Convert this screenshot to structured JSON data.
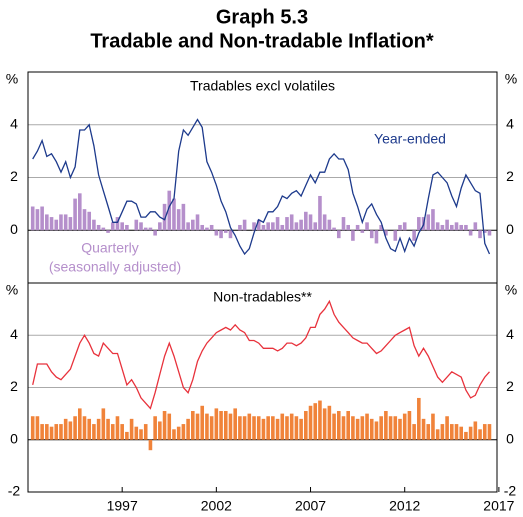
{
  "title": "Graph 5.3",
  "subtitle": "Tradable and Non-tradable Inflation*",
  "chart_data": [
    {
      "type": "bar-line",
      "title": "Tradables excl volatiles",
      "ylabel": "%",
      "ylim": [
        -2,
        6
      ],
      "yticks": [
        0,
        2,
        4
      ],
      "xlim": [
        1992,
        2016.9
      ],
      "grid": true,
      "x": [
        1992.25,
        1992.5,
        1992.75,
        1993,
        1993.25,
        1993.5,
        1993.75,
        1994,
        1994.25,
        1994.5,
        1994.75,
        1995,
        1995.25,
        1995.5,
        1995.75,
        1996,
        1996.25,
        1996.5,
        1996.75,
        1997,
        1997.25,
        1997.5,
        1997.75,
        1998,
        1998.25,
        1998.5,
        1998.75,
        1999,
        1999.25,
        1999.5,
        1999.75,
        2000,
        2000.25,
        2000.5,
        2000.75,
        2001,
        2001.25,
        2001.5,
        2001.75,
        2002,
        2002.25,
        2002.5,
        2002.75,
        2003,
        2003.25,
        2003.5,
        2003.75,
        2004,
        2004.25,
        2004.5,
        2004.75,
        2005,
        2005.25,
        2005.5,
        2005.75,
        2006,
        2006.25,
        2006.5,
        2006.75,
        2007,
        2007.25,
        2007.5,
        2007.75,
        2008,
        2008.25,
        2008.5,
        2008.75,
        2009,
        2009.25,
        2009.5,
        2009.75,
        2010,
        2010.25,
        2010.5,
        2010.75,
        2011,
        2011.25,
        2011.5,
        2011.75,
        2012,
        2012.25,
        2012.5,
        2012.75,
        2013,
        2013.25,
        2013.5,
        2013.75,
        2014,
        2014.25,
        2014.5,
        2014.75,
        2015,
        2015.25,
        2015.5,
        2015.75,
        2016,
        2016.25,
        2016.5
      ],
      "series": [
        {
          "name": "Quarterly",
          "kind": "bar",
          "color": "#b58fcb",
          "note": "(seasonally adjusted)",
          "values": [
            0.9,
            0.8,
            0.9,
            0.6,
            0.5,
            0.4,
            0.6,
            0.6,
            0.5,
            1.2,
            1.4,
            0.8,
            0.7,
            0.4,
            0.2,
            0.1,
            -0.1,
            0.3,
            0.5,
            0.3,
            0.2,
            0.0,
            0.4,
            0.3,
            0.1,
            0.1,
            -0.2,
            0.3,
            1.0,
            1.5,
            1.2,
            0.8,
            1.0,
            0.3,
            0.4,
            0.6,
            0.2,
            0.1,
            0.2,
            -0.2,
            -0.3,
            -0.1,
            -0.3,
            0.0,
            0.2,
            0.4,
            0.0,
            0.3,
            0.4,
            0.2,
            0.3,
            0.3,
            0.5,
            0.2,
            0.5,
            0.6,
            0.3,
            0.4,
            0.7,
            0.6,
            0.3,
            1.3,
            0.6,
            0.4,
            0.1,
            -0.3,
            0.5,
            0.2,
            -0.4,
            0.2,
            -0.1,
            0.3,
            -0.3,
            -0.5,
            0.2,
            -0.2,
            0.0,
            -0.4,
            0.2,
            0.3,
            0.0,
            -0.4,
            0.5,
            0.5,
            0.6,
            0.8,
            0.3,
            0.2,
            0.4,
            0.2,
            0.3,
            0.2,
            0.2,
            -0.2,
            0.3,
            -0.3,
            -0.1,
            -0.2
          ]
        },
        {
          "name": "Year-ended",
          "kind": "line",
          "color": "#1d3a8c",
          "values": [
            2.7,
            3.0,
            3.4,
            2.8,
            2.9,
            2.6,
            2.2,
            2.6,
            2.0,
            2.4,
            3.8,
            3.8,
            4.0,
            3.2,
            2.1,
            1.5,
            0.9,
            0.3,
            0.3,
            0.7,
            1.1,
            1.1,
            1.0,
            0.5,
            0.5,
            0.7,
            0.7,
            0.5,
            0.4,
            0.9,
            1.2,
            3.0,
            3.8,
            3.6,
            3.9,
            4.2,
            3.9,
            2.6,
            2.2,
            1.7,
            1.1,
            0.7,
            0.1,
            -0.2,
            -0.6,
            -0.9,
            -0.7,
            -0.1,
            0.4,
            0.3,
            0.7,
            0.7,
            0.9,
            1.3,
            1.2,
            1.4,
            1.5,
            1.3,
            1.7,
            2.1,
            1.8,
            2.2,
            2.2,
            2.7,
            2.9,
            2.7,
            2.7,
            2.3,
            1.4,
            0.9,
            0.3,
            0.8,
            1.0,
            0.6,
            0.3,
            -0.3,
            -0.7,
            -0.8,
            -0.3,
            -0.8,
            -0.3,
            -0.6,
            -0.1,
            0.2,
            1.2,
            2.1,
            2.2,
            2.0,
            1.8,
            1.3,
            0.9,
            1.6,
            2.1,
            1.8,
            1.5,
            1.4,
            -0.5,
            -0.9
          ]
        }
      ]
    },
    {
      "type": "bar-line",
      "title": "Non-tradables**",
      "ylabel": "%",
      "ylim": [
        -2,
        6
      ],
      "yticks": [
        -2,
        0,
        2,
        4
      ],
      "xlim": [
        1992,
        2016.9
      ],
      "grid": true,
      "xticks": [
        1997,
        2002,
        2007,
        2012,
        2017
      ],
      "x": [
        1992.25,
        1992.5,
        1992.75,
        1993,
        1993.25,
        1993.5,
        1993.75,
        1994,
        1994.25,
        1994.5,
        1994.75,
        1995,
        1995.25,
        1995.5,
        1995.75,
        1996,
        1996.25,
        1996.5,
        1996.75,
        1997,
        1997.25,
        1997.5,
        1997.75,
        1998,
        1998.25,
        1998.5,
        1998.75,
        1999,
        1999.25,
        1999.5,
        1999.75,
        2000,
        2000.25,
        2000.5,
        2000.75,
        2001,
        2001.25,
        2001.5,
        2001.75,
        2002,
        2002.25,
        2002.5,
        2002.75,
        2003,
        2003.25,
        2003.5,
        2003.75,
        2004,
        2004.25,
        2004.5,
        2004.75,
        2005,
        2005.25,
        2005.5,
        2005.75,
        2006,
        2006.25,
        2006.5,
        2006.75,
        2007,
        2007.25,
        2007.5,
        2007.75,
        2008,
        2008.25,
        2008.5,
        2008.75,
        2009,
        2009.25,
        2009.5,
        2009.75,
        2010,
        2010.25,
        2010.5,
        2010.75,
        2011,
        2011.25,
        2011.5,
        2011.75,
        2012,
        2012.25,
        2012.5,
        2012.75,
        2013,
        2013.25,
        2013.5,
        2013.75,
        2014,
        2014.25,
        2014.5,
        2014.75,
        2015,
        2015.25,
        2015.5,
        2015.75,
        2016,
        2016.25,
        2016.5
      ],
      "series": [
        {
          "kind": "bar",
          "color": "#f0833a",
          "values": [
            0.9,
            0.9,
            0.6,
            0.6,
            0.5,
            0.6,
            0.6,
            0.8,
            0.7,
            0.9,
            1.2,
            0.9,
            0.8,
            0.6,
            0.8,
            1.2,
            0.8,
            0.6,
            0.9,
            0.6,
            0.3,
            0.8,
            0.5,
            0.4,
            0.6,
            -0.4,
            0.9,
            0.7,
            1.1,
            1.0,
            0.4,
            0.5,
            0.6,
            0.8,
            1.1,
            1.0,
            1.3,
            1.0,
            0.9,
            1.2,
            1.1,
            1.1,
            1.0,
            1.2,
            0.9,
            0.9,
            1.0,
            0.9,
            0.9,
            0.8,
            0.9,
            0.9,
            0.8,
            1.0,
            0.9,
            1.0,
            0.9,
            0.8,
            1.1,
            1.3,
            1.4,
            1.5,
            1.2,
            1.3,
            1.0,
            1.1,
            0.9,
            1.1,
            0.9,
            0.8,
            0.9,
            1.0,
            0.8,
            0.7,
            0.9,
            1.1,
            0.9,
            0.9,
            0.8,
            1.0,
            1.1,
            0.6,
            1.6,
            0.8,
            0.6,
            1.0,
            0.4,
            0.6,
            0.9,
            0.6,
            0.6,
            0.5,
            0.3,
            0.5,
            0.7,
            0.4,
            0.6,
            0.6
          ]
        },
        {
          "kind": "line",
          "color": "#e8323c",
          "values": [
            2.1,
            2.9,
            2.9,
            2.9,
            2.6,
            2.4,
            2.3,
            2.5,
            2.7,
            3.2,
            3.7,
            4.0,
            3.7,
            3.3,
            3.2,
            3.7,
            3.5,
            3.3,
            3.3,
            2.7,
            2.1,
            2.3,
            2.0,
            1.6,
            1.4,
            1.2,
            1.8,
            2.5,
            3.2,
            3.7,
            3.2,
            2.6,
            2.0,
            1.8,
            2.3,
            3.0,
            3.4,
            3.7,
            3.9,
            4.1,
            4.2,
            4.3,
            4.2,
            4.4,
            4.2,
            4.1,
            3.8,
            3.8,
            3.7,
            3.5,
            3.5,
            3.5,
            3.4,
            3.5,
            3.7,
            3.7,
            3.6,
            3.7,
            3.9,
            4.3,
            4.3,
            4.8,
            5.0,
            5.3,
            4.8,
            4.5,
            4.3,
            4.1,
            3.9,
            3.8,
            3.7,
            3.7,
            3.5,
            3.3,
            3.4,
            3.6,
            3.8,
            4.0,
            4.1,
            4.2,
            4.3,
            3.6,
            3.2,
            3.5,
            3.2,
            2.8,
            2.4,
            2.2,
            2.4,
            2.6,
            2.5,
            2.4,
            1.9,
            1.6,
            1.7,
            2.1,
            2.4,
            2.6
          ]
        }
      ]
    }
  ]
}
